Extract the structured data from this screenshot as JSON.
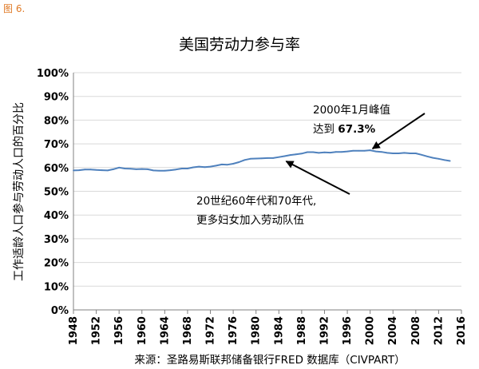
{
  "figure_label": "图 6.",
  "chart_data": {
    "type": "line",
    "title": "美国劳动力参与率",
    "ylabel": "工作适龄人口参与劳动人口的百分比",
    "xlabel": "",
    "source": "来源：圣路易斯联邦储备银行FRED 数据库（CIVPART）",
    "xlim": [
      1948,
      2016
    ],
    "ylim": [
      0,
      100
    ],
    "yticks": [
      "0%",
      "10%",
      "20%",
      "30%",
      "40%",
      "50%",
      "60%",
      "70%",
      "80%",
      "90%",
      "100%"
    ],
    "xticks": [
      "1948",
      "1952",
      "1956",
      "1960",
      "1964",
      "1968",
      "1972",
      "1976",
      "1980",
      "1984",
      "1988",
      "1992",
      "1996",
      "2000",
      "2004",
      "2008",
      "2012",
      "2016"
    ],
    "grid": "horizontal",
    "line_color": "#4f81bd",
    "series": [
      {
        "x": [
          1948,
          1949,
          1950,
          1951,
          1952,
          1953,
          1954,
          1955,
          1956,
          1957,
          1958,
          1959,
          1960,
          1961,
          1962,
          1963,
          1964,
          1965,
          1966,
          1967,
          1968,
          1969,
          1970,
          1971,
          1972,
          1973,
          1974,
          1975,
          1976,
          1977,
          1978,
          1979,
          1980,
          1981,
          1982,
          1983,
          1984,
          1985,
          1986,
          1987,
          1988,
          1989,
          1990,
          1991,
          1992,
          1993,
          1994,
          1995,
          1996,
          1997,
          1998,
          1999,
          2000,
          2001,
          2002,
          2003,
          2004,
          2005,
          2006,
          2007,
          2008,
          2009,
          2010,
          2011,
          2012,
          2013,
          2014
        ],
        "values": [
          58.8,
          58.9,
          59.2,
          59.2,
          59.0,
          58.9,
          58.8,
          59.3,
          60.0,
          59.6,
          59.5,
          59.3,
          59.4,
          59.3,
          58.8,
          58.7,
          58.7,
          58.9,
          59.2,
          59.6,
          59.6,
          60.1,
          60.4,
          60.2,
          60.4,
          60.8,
          61.3,
          61.2,
          61.6,
          62.3,
          63.2,
          63.7,
          63.8,
          63.9,
          64.0,
          64.0,
          64.4,
          64.8,
          65.3,
          65.6,
          65.9,
          66.5,
          66.5,
          66.2,
          66.4,
          66.3,
          66.6,
          66.6,
          66.8,
          67.1,
          67.1,
          67.1,
          67.3,
          66.8,
          66.6,
          66.2,
          66.0,
          66.0,
          66.2,
          66.0,
          66.0,
          65.4,
          64.7,
          64.1,
          63.7,
          63.2,
          62.8
        ]
      }
    ],
    "annotations": [
      {
        "lines": [
          "2000年1月峰值",
          "达到 "
        ],
        "emphasis": "67.3%",
        "target_x": 2000,
        "target_y": 67.3
      },
      {
        "lines": [
          "20世纪60年代和70年代,",
          "更多妇女加入劳动队伍"
        ],
        "target_x": 1985,
        "target_y": 64.0
      }
    ]
  }
}
